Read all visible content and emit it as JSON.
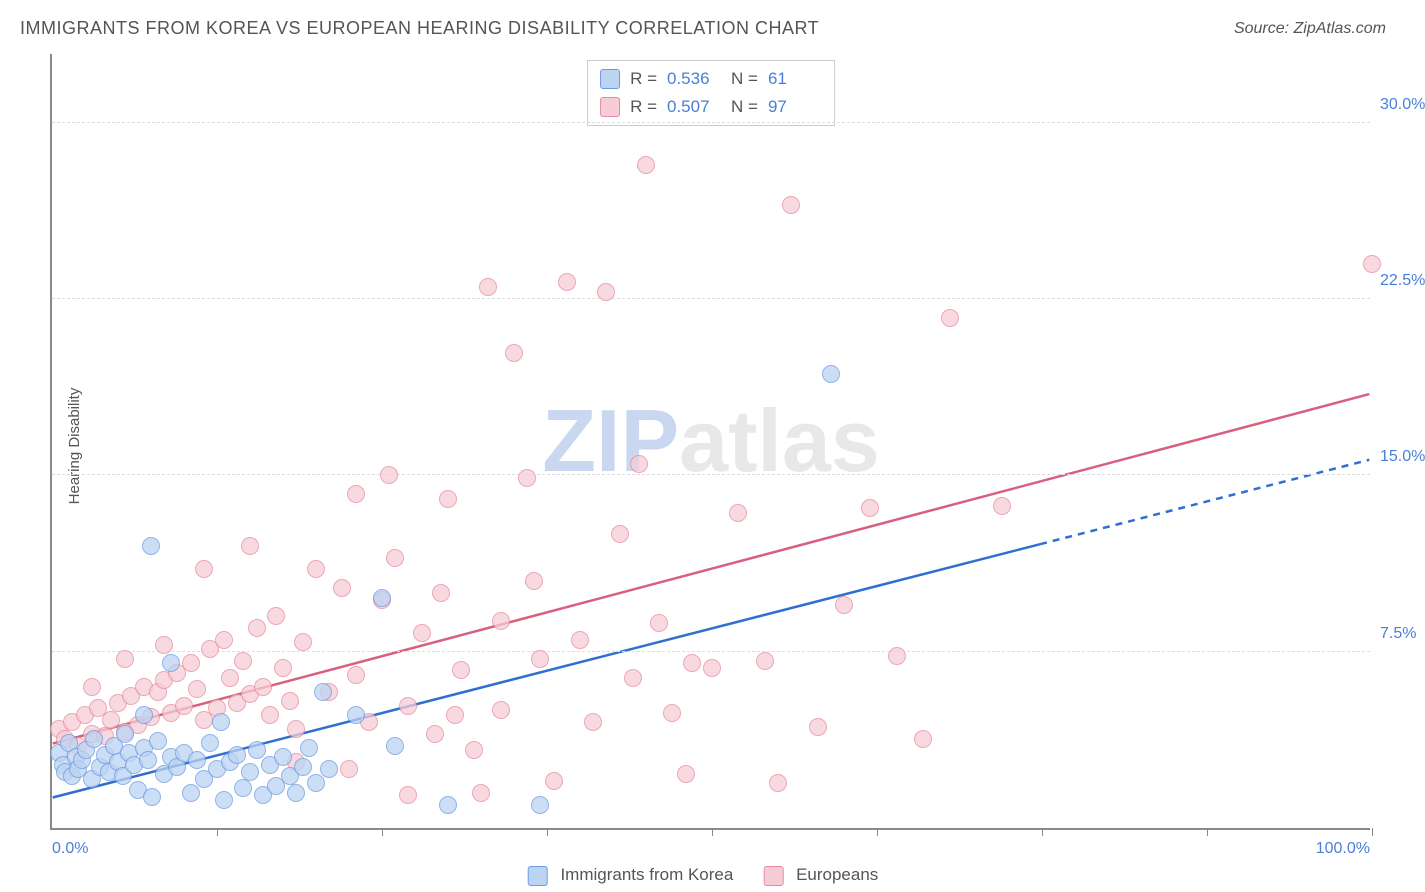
{
  "title": "IMMIGRANTS FROM KOREA VS EUROPEAN HEARING DISABILITY CORRELATION CHART",
  "source": "Source: ZipAtlas.com",
  "y_axis_label": "Hearing Disability",
  "chart": {
    "type": "scatter",
    "xlim": [
      0,
      100
    ],
    "ylim": [
      0,
      33
    ],
    "x_tick_labels": {
      "min": "0.0%",
      "max": "100.0%"
    },
    "x_minor_ticks": [
      12.5,
      25,
      37.5,
      50,
      62.5,
      75,
      87.5,
      100
    ],
    "y_ticks": [
      {
        "v": 7.5,
        "label": "7.5%"
      },
      {
        "v": 15.0,
        "label": "15.0%"
      },
      {
        "v": 22.5,
        "label": "22.5%"
      },
      {
        "v": 30.0,
        "label": "30.0%"
      }
    ],
    "background_color": "#ffffff",
    "grid_color": "#dddddd",
    "axis_color": "#888888",
    "tick_label_color": "#4a7fd8",
    "marker_radius": 9,
    "marker_stroke_width": 1.5,
    "trend_line_width": 2.5,
    "series": {
      "korea": {
        "label": "Immigrants from Korea",
        "fill": "#bcd3f2",
        "stroke": "#6b9be0",
        "line_color": "#2f6fd0",
        "R": "0.536",
        "N": "61",
        "trend": {
          "x1": 0,
          "y1": 1.3,
          "x2_solid": 75,
          "y2_solid": 12.1,
          "x2_dash": 100,
          "y2_dash": 15.7
        },
        "points": [
          [
            0.5,
            3.2
          ],
          [
            0.8,
            2.7
          ],
          [
            1.0,
            2.4
          ],
          [
            1.3,
            3.6
          ],
          [
            1.5,
            2.2
          ],
          [
            1.8,
            3.0
          ],
          [
            2.0,
            2.5
          ],
          [
            2.3,
            2.9
          ],
          [
            2.6,
            3.3
          ],
          [
            3.0,
            2.1
          ],
          [
            3.2,
            3.8
          ],
          [
            3.6,
            2.6
          ],
          [
            4.0,
            3.1
          ],
          [
            4.3,
            2.4
          ],
          [
            4.7,
            3.5
          ],
          [
            5.0,
            2.8
          ],
          [
            5.4,
            2.2
          ],
          [
            5.8,
            3.2
          ],
          [
            6.2,
            2.7
          ],
          [
            6.5,
            1.6
          ],
          [
            7.0,
            3.4
          ],
          [
            7.3,
            2.9
          ],
          [
            7.6,
            1.3
          ],
          [
            8.0,
            3.7
          ],
          [
            8.5,
            2.3
          ],
          [
            9.0,
            3.0
          ],
          [
            9.5,
            2.6
          ],
          [
            10.0,
            3.2
          ],
          [
            10.5,
            1.5
          ],
          [
            11.0,
            2.9
          ],
          [
            11.5,
            2.1
          ],
          [
            12.0,
            3.6
          ],
          [
            12.5,
            2.5
          ],
          [
            13.0,
            1.2
          ],
          [
            13.5,
            2.8
          ],
          [
            14.0,
            3.1
          ],
          [
            14.5,
            1.7
          ],
          [
            15.0,
            2.4
          ],
          [
            15.5,
            3.3
          ],
          [
            16.0,
            1.4
          ],
          [
            16.5,
            2.7
          ],
          [
            17.0,
            1.8
          ],
          [
            17.5,
            3.0
          ],
          [
            18.0,
            2.2
          ],
          [
            18.5,
            1.5
          ],
          [
            19.0,
            2.6
          ],
          [
            19.5,
            3.4
          ],
          [
            20.0,
            1.9
          ],
          [
            21.0,
            2.5
          ],
          [
            7.5,
            12.0
          ],
          [
            9.0,
            7.0
          ],
          [
            23.0,
            4.8
          ],
          [
            25.0,
            9.8
          ],
          [
            26.0,
            3.5
          ],
          [
            20.5,
            5.8
          ],
          [
            30.0,
            1.0
          ],
          [
            37.0,
            1.0
          ],
          [
            59.0,
            19.3
          ],
          [
            7.0,
            4.8
          ],
          [
            12.8,
            4.5
          ],
          [
            5.5,
            4.0
          ]
        ]
      },
      "europe": {
        "label": "Europeans",
        "fill": "#f6cdd6",
        "stroke": "#e58aa0",
        "line_color": "#d85f7d",
        "R": "0.507",
        "N": "97",
        "trend": {
          "x1": 0,
          "y1": 3.6,
          "x2": 100,
          "y2": 18.5
        },
        "points": [
          [
            0.5,
            4.2
          ],
          [
            1.0,
            3.8
          ],
          [
            1.5,
            4.5
          ],
          [
            2.0,
            3.5
          ],
          [
            2.5,
            4.8
          ],
          [
            3.0,
            4.0
          ],
          [
            3.5,
            5.1
          ],
          [
            4.0,
            3.9
          ],
          [
            4.5,
            4.6
          ],
          [
            5.0,
            5.3
          ],
          [
            5.5,
            4.1
          ],
          [
            6.0,
            5.6
          ],
          [
            6.5,
            4.4
          ],
          [
            7.0,
            6.0
          ],
          [
            7.5,
            4.7
          ],
          [
            8.0,
            5.8
          ],
          [
            8.5,
            6.3
          ],
          [
            9.0,
            4.9
          ],
          [
            9.5,
            6.6
          ],
          [
            10.0,
            5.2
          ],
          [
            10.5,
            7.0
          ],
          [
            11.0,
            5.9
          ],
          [
            11.5,
            4.6
          ],
          [
            12.0,
            7.6
          ],
          [
            12.5,
            5.1
          ],
          [
            13.0,
            8.0
          ],
          [
            13.5,
            6.4
          ],
          [
            14.0,
            5.3
          ],
          [
            14.5,
            7.1
          ],
          [
            15.0,
            5.7
          ],
          [
            15.5,
            8.5
          ],
          [
            16.0,
            6.0
          ],
          [
            16.5,
            4.8
          ],
          [
            17.0,
            9.0
          ],
          [
            17.5,
            6.8
          ],
          [
            18.0,
            5.4
          ],
          [
            18.5,
            4.2
          ],
          [
            19.0,
            7.9
          ],
          [
            20.0,
            11.0
          ],
          [
            21.0,
            5.8
          ],
          [
            22.0,
            10.2
          ],
          [
            23.0,
            6.5
          ],
          [
            24.0,
            4.5
          ],
          [
            25.0,
            9.7
          ],
          [
            26.0,
            11.5
          ],
          [
            27.0,
            5.2
          ],
          [
            28.0,
            8.3
          ],
          [
            29.0,
            4.0
          ],
          [
            30.0,
            14.0
          ],
          [
            31.0,
            6.7
          ],
          [
            32.0,
            3.3
          ],
          [
            33.0,
            23.0
          ],
          [
            34.0,
            8.8
          ],
          [
            35.0,
            20.2
          ],
          [
            36.0,
            14.9
          ],
          [
            37.0,
            7.2
          ],
          [
            38.0,
            2.0
          ],
          [
            39.0,
            23.2
          ],
          [
            40.0,
            8.0
          ],
          [
            41.0,
            4.5
          ],
          [
            42.0,
            22.8
          ],
          [
            43.0,
            12.5
          ],
          [
            44.0,
            6.4
          ],
          [
            45.0,
            28.2
          ],
          [
            46.0,
            8.7
          ],
          [
            47.0,
            4.9
          ],
          [
            48.0,
            2.3
          ],
          [
            50.0,
            6.8
          ],
          [
            52.0,
            13.4
          ],
          [
            54.0,
            7.1
          ],
          [
            56.0,
            26.5
          ],
          [
            58.0,
            4.3
          ],
          [
            60.0,
            9.5
          ],
          [
            62.0,
            13.6
          ],
          [
            64.0,
            7.3
          ],
          [
            66.0,
            3.8
          ],
          [
            68.0,
            21.7
          ],
          [
            72.0,
            13.7
          ],
          [
            55.0,
            1.9
          ],
          [
            27.0,
            1.4
          ],
          [
            32.5,
            1.5
          ],
          [
            48.5,
            7.0
          ],
          [
            44.5,
            15.5
          ],
          [
            36.5,
            10.5
          ],
          [
            29.5,
            10.0
          ],
          [
            25.5,
            15.0
          ],
          [
            23.0,
            14.2
          ],
          [
            15.0,
            12.0
          ],
          [
            11.5,
            11.0
          ],
          [
            8.5,
            7.8
          ],
          [
            5.5,
            7.2
          ],
          [
            3.0,
            6.0
          ],
          [
            100.0,
            24.0
          ],
          [
            22.5,
            2.5
          ],
          [
            18.5,
            2.8
          ],
          [
            30.5,
            4.8
          ],
          [
            34.0,
            5.0
          ]
        ]
      }
    }
  },
  "watermark": {
    "part1": "ZIP",
    "part2": "atlas"
  }
}
